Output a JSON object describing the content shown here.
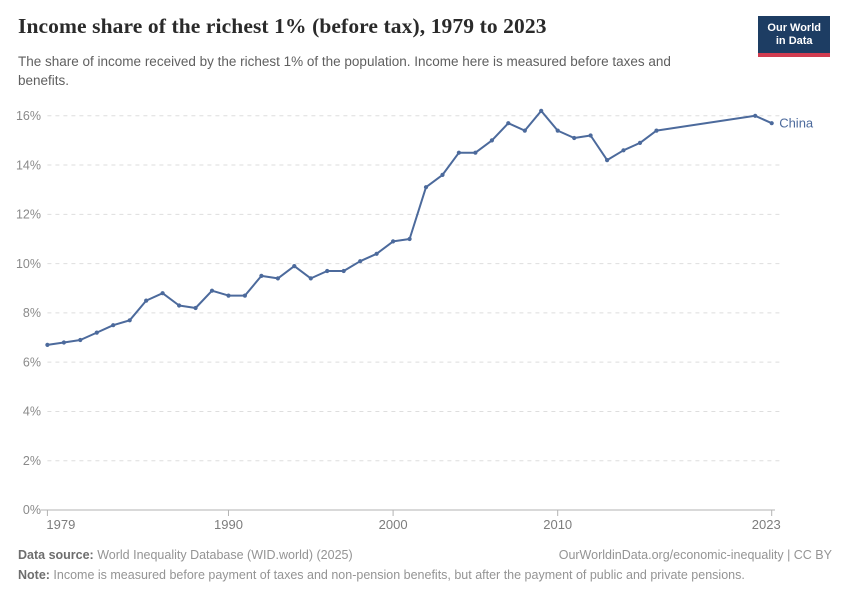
{
  "header": {
    "title": "Income share of the richest 1% (before tax), 1979 to 2023",
    "subtitle": "The share of income received by the richest 1% of the population. Income here is measured before taxes and benefits.",
    "logo": {
      "line1": "Our World",
      "line2": "in Data",
      "bg_color": "#1d3d63",
      "accent_color": "#d13c50"
    }
  },
  "chart_data": {
    "type": "line",
    "title": "Income share of the richest 1% (before tax), 1979 to 2023",
    "xlabel": "",
    "ylabel": "",
    "unit": "%",
    "xlim": [
      1979,
      2023
    ],
    "ylim": [
      0,
      16.6
    ],
    "x_ticks": [
      1979,
      1990,
      2000,
      2010,
      2023
    ],
    "y_ticks": [
      0,
      2,
      4,
      6,
      8,
      10,
      12,
      14,
      16
    ],
    "grid": "horizontal-dashed",
    "legend_position": "end-of-line-label",
    "series": [
      {
        "name": "China",
        "color": "#4c6a9c",
        "points": [
          [
            1979,
            6.7
          ],
          [
            1980,
            6.8
          ],
          [
            1981,
            6.9
          ],
          [
            1982,
            7.2
          ],
          [
            1983,
            7.5
          ],
          [
            1984,
            7.7
          ],
          [
            1985,
            8.5
          ],
          [
            1986,
            8.8
          ],
          [
            1987,
            8.3
          ],
          [
            1988,
            8.2
          ],
          [
            1989,
            8.9
          ],
          [
            1990,
            8.7
          ],
          [
            1991,
            8.7
          ],
          [
            1992,
            9.5
          ],
          [
            1993,
            9.4
          ],
          [
            1994,
            9.9
          ],
          [
            1995,
            9.4
          ],
          [
            1996,
            9.7
          ],
          [
            1997,
            9.7
          ],
          [
            1998,
            10.1
          ],
          [
            1999,
            10.4
          ],
          [
            2000,
            10.9
          ],
          [
            2001,
            11.0
          ],
          [
            2002,
            13.1
          ],
          [
            2003,
            13.6
          ],
          [
            2004,
            14.5
          ],
          [
            2005,
            14.5
          ],
          [
            2006,
            15.0
          ],
          [
            2007,
            15.7
          ],
          [
            2008,
            15.4
          ],
          [
            2009,
            16.2
          ],
          [
            2010,
            15.4
          ],
          [
            2011,
            15.1
          ],
          [
            2012,
            15.2
          ],
          [
            2013,
            14.2
          ],
          [
            2014,
            14.6
          ],
          [
            2015,
            14.9
          ],
          [
            2016,
            15.4
          ],
          [
            2022,
            16.0
          ],
          [
            2023,
            15.7
          ]
        ]
      }
    ]
  },
  "footer": {
    "datasource_label": "Data source:",
    "datasource": " World Inequality Database (WID.world) (2025)",
    "url": "OurWorldinData.org/economic-inequality | CC BY",
    "note_label": "Note:",
    "note": " Income is measured before payment of taxes and non-pension benefits, but after the payment of public and private pensions."
  }
}
